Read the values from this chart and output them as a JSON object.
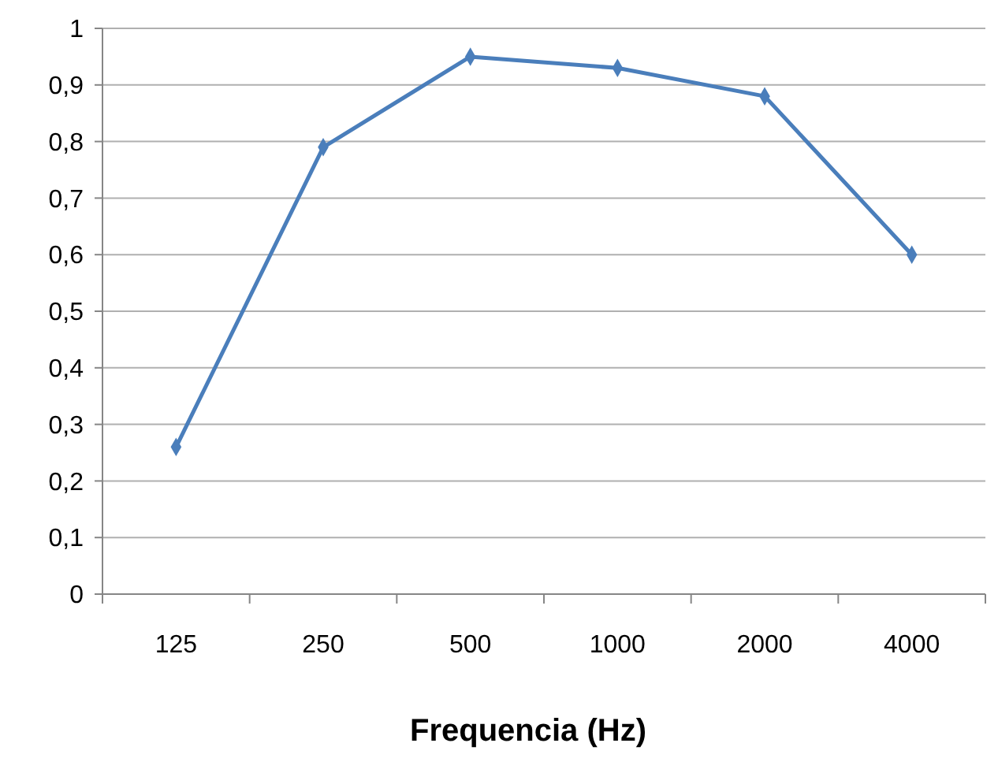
{
  "chart_data": {
    "type": "line",
    "xlabel": "Frequencia (Hz)",
    "categories": [
      "125",
      "250",
      "500",
      "1000",
      "2000",
      "4000"
    ],
    "series": [
      {
        "color": "#4a7ebb",
        "values": [
          0.26,
          0.79,
          0.95,
          0.93,
          0.88,
          0.6
        ]
      }
    ],
    "ylim": [
      0,
      1
    ],
    "yticks": [
      0,
      {
        "value": 0.1,
        "label": "0,1"
      },
      {
        "value": 0.2,
        "label": "0,2"
      },
      {
        "value": 0.3,
        "label": "0,3"
      },
      {
        "value": 0.4,
        "label": "0,4"
      },
      {
        "value": 0.5,
        "label": "0,5"
      },
      {
        "value": 0.6,
        "label": "0,6"
      },
      {
        "value": 0.7,
        "label": "0,7"
      },
      {
        "value": 0.8,
        "label": "0,8"
      },
      {
        "value": 0.9,
        "label": "0,9"
      },
      1
    ],
    "grid": "y",
    "marker": "diamond",
    "line_style": "solid"
  }
}
